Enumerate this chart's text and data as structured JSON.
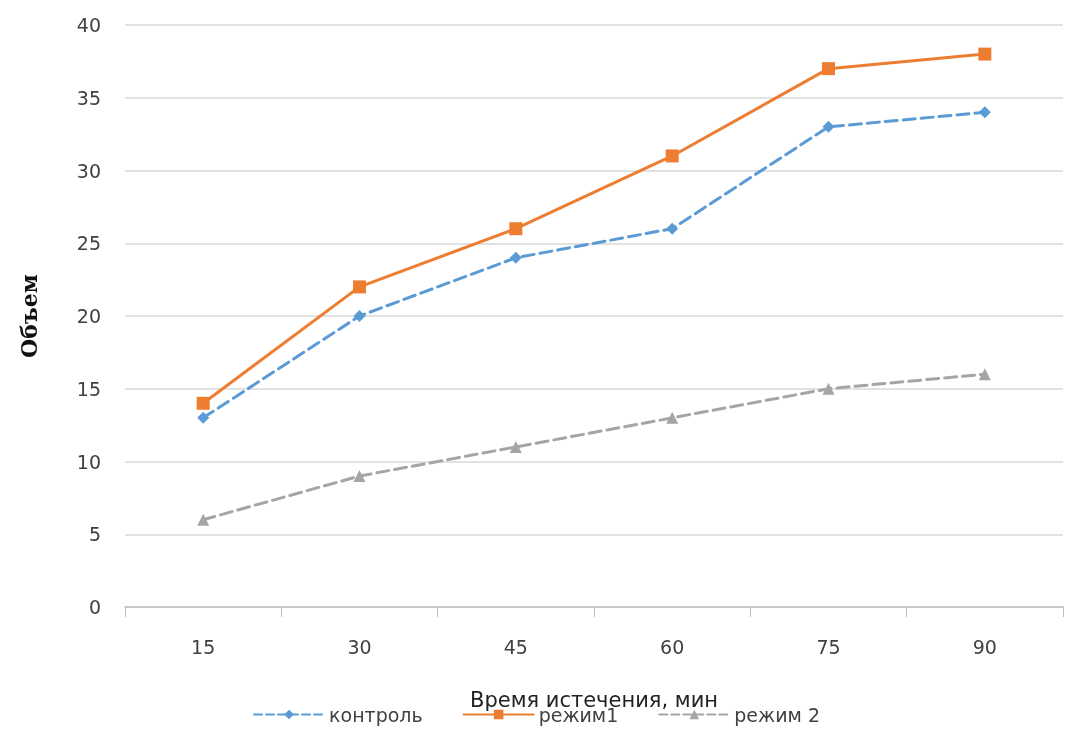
{
  "chart_data": {
    "type": "line",
    "xlabel": "Время истечения, мин",
    "ylabel": "Объем",
    "categories": [
      "15",
      "30",
      "45",
      "60",
      "75",
      "90"
    ],
    "series": [
      {
        "name": "контроль",
        "color": "#5b9bd5",
        "values": [
          13,
          20,
          24,
          26,
          33,
          34
        ],
        "marker": "diamond",
        "line_style": "dashed"
      },
      {
        "name": "режим1",
        "color": "#ed7d31",
        "values": [
          14,
          22,
          26,
          31,
          37,
          38
        ],
        "marker": "square",
        "line_style": "solid"
      },
      {
        "name": "режим 2",
        "color": "#a5a5a5",
        "values": [
          6,
          9,
          11,
          13,
          15,
          16
        ],
        "marker": "triangle",
        "line_style": "dashed"
      }
    ],
    "ylim": [
      0,
      40
    ],
    "yticks": [
      0,
      5,
      10,
      15,
      20,
      25,
      30,
      35,
      40
    ],
    "grid": "y",
    "legend": "bottom"
  }
}
